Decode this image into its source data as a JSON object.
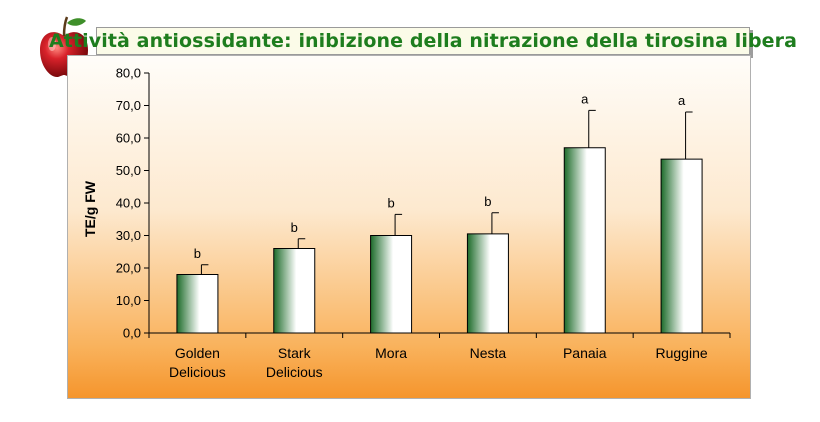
{
  "header": {
    "title": "Attività antiossidante: inibizione della nitrazione della tirosina libera"
  },
  "logo": {
    "icon": "apple-icon",
    "color": "#c8171c"
  },
  "colors": {
    "bar_dark": "#1d6b2a",
    "bar_light": "#ffffff",
    "title_text": "#1e7d1e",
    "background_top": "#fffdf9",
    "background_bottom": "#f5952c"
  },
  "chart_data": {
    "type": "bar",
    "title": "Attività antiossidante: inibizione della nitrazione della tirosina libera",
    "xlabel": "",
    "ylabel": "TE/g FW",
    "ylim": [
      0,
      80
    ],
    "yticks": [
      "0,0",
      "10,0",
      "20,0",
      "30,0",
      "40,0",
      "50,0",
      "60,0",
      "70,0",
      "80,0"
    ],
    "grid": false,
    "legend": "none",
    "categories": [
      [
        "Golden",
        "Delicious"
      ],
      [
        "Stark",
        "Delicious"
      ],
      [
        "Mora"
      ],
      [
        "Nesta"
      ],
      [
        "Panaia"
      ],
      [
        "Ruggine"
      ]
    ],
    "values": [
      18,
      26,
      30,
      30.5,
      57,
      53.5
    ],
    "error_upper": [
      21,
      29,
      36.5,
      37,
      68.5,
      68
    ],
    "significance": [
      "b",
      "b",
      "b",
      "b",
      "a",
      "a"
    ]
  }
}
